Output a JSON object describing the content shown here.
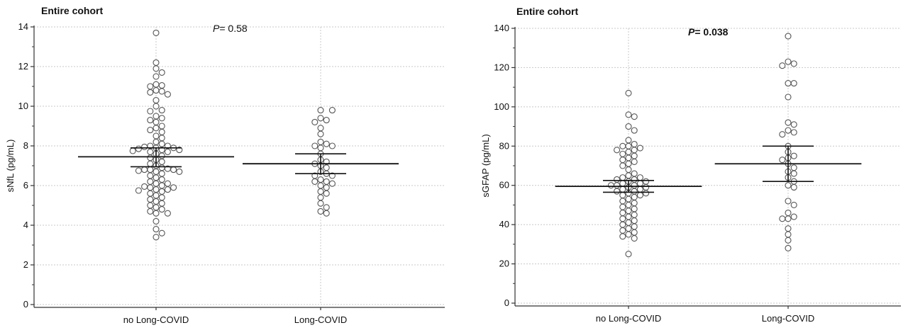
{
  "chart_data": [
    {
      "type": "scatter",
      "subtype": "dot-plot-with-mean-and-95ci",
      "title": "Entire cohort",
      "ylabel": "sNfL (pg/mL)",
      "xlabel": "",
      "categories": [
        "no Long-COVID",
        "Long-COVID"
      ],
      "ylim": [
        0,
        14
      ],
      "yticks": [
        "0",
        "2",
        "4",
        "6",
        "8",
        "10",
        "12",
        "14"
      ],
      "grid": true,
      "annotation": {
        "italic": "P",
        "rest": "= 0.58",
        "bold": false
      },
      "groups": [
        {
          "name": "no Long-COVID",
          "mean": 7.45,
          "ci_low": 6.95,
          "ci_high": 7.9,
          "values": [
            13.7,
            12.2,
            11.9,
            11.7,
            11.5,
            11.1,
            11.05,
            11.0,
            10.8,
            10.75,
            10.7,
            10.6,
            10.3,
            10.0,
            9.8,
            9.75,
            9.5,
            9.4,
            9.3,
            9.2,
            9.0,
            8.9,
            8.8,
            8.7,
            8.5,
            8.4,
            8.2,
            8.1,
            8.0,
            8.0,
            7.95,
            7.9,
            7.9,
            7.85,
            7.8,
            7.8,
            7.75,
            7.7,
            7.7,
            7.6,
            7.5,
            7.4,
            7.3,
            7.2,
            7.1,
            7.0,
            6.9,
            6.85,
            6.8,
            6.8,
            6.8,
            6.75,
            6.7,
            6.7,
            6.6,
            6.5,
            6.4,
            6.3,
            6.2,
            6.1,
            6.1,
            6.0,
            5.95,
            5.9,
            5.9,
            5.8,
            5.8,
            5.75,
            5.7,
            5.6,
            5.5,
            5.4,
            5.3,
            5.2,
            5.1,
            5.0,
            4.9,
            4.8,
            4.7,
            4.6,
            4.6,
            4.2,
            3.8,
            3.6,
            3.4
          ]
        },
        {
          "name": "Long-COVID",
          "mean": 7.1,
          "ci_low": 6.6,
          "ci_high": 7.6,
          "values": [
            9.8,
            9.8,
            9.4,
            9.3,
            9.2,
            8.9,
            8.6,
            8.2,
            8.1,
            8.0,
            8.0,
            7.9,
            7.6,
            7.3,
            7.2,
            7.1,
            7.0,
            6.9,
            6.7,
            6.6,
            6.5,
            6.5,
            6.3,
            6.2,
            6.2,
            6.1,
            6.0,
            5.9,
            5.7,
            5.6,
            5.4,
            5.1,
            4.9,
            4.7,
            4.6
          ]
        }
      ]
    },
    {
      "type": "scatter",
      "subtype": "dot-plot-with-mean-and-95ci",
      "title": "Entire cohort",
      "ylabel": "sGFAP (pg/mL)",
      "xlabel": "",
      "categories": [
        "no Long-COVID",
        "Long-COVID"
      ],
      "ylim": [
        0,
        140
      ],
      "yticks": [
        "0",
        "20",
        "40",
        "60",
        "80",
        "100",
        "120",
        "140"
      ],
      "grid": true,
      "annotation": {
        "italic": "P",
        "rest": "= 0.038",
        "bold": true
      },
      "groups": [
        {
          "name": "no Long-COVID",
          "mean": 59.5,
          "ci_low": 56.5,
          "ci_high": 62.5,
          "values": [
            107,
            96,
            95,
            90,
            88,
            83,
            81,
            80,
            80,
            79,
            78,
            78,
            77,
            76,
            75,
            74,
            73,
            72,
            71,
            70,
            68,
            66,
            65,
            64,
            64,
            63,
            63,
            62,
            62,
            61,
            61,
            60,
            60,
            60,
            59,
            59,
            58,
            58,
            57,
            57,
            56,
            56,
            55,
            55,
            54,
            53,
            52,
            51,
            50,
            49,
            48,
            47,
            46,
            45,
            44,
            43,
            42,
            41,
            40,
            39,
            38,
            37,
            36,
            35,
            34,
            33,
            25
          ]
        },
        {
          "name": "Long-COVID",
          "mean": 71,
          "ci_low": 62,
          "ci_high": 80,
          "values": [
            136,
            123,
            122,
            121,
            112,
            112,
            105,
            92,
            91,
            88,
            87,
            86,
            80,
            77,
            75,
            74,
            73,
            71,
            69,
            67,
            66,
            64,
            62,
            60,
            59,
            52,
            50,
            46,
            44,
            43,
            43,
            38,
            35,
            32,
            28
          ]
        }
      ]
    }
  ]
}
